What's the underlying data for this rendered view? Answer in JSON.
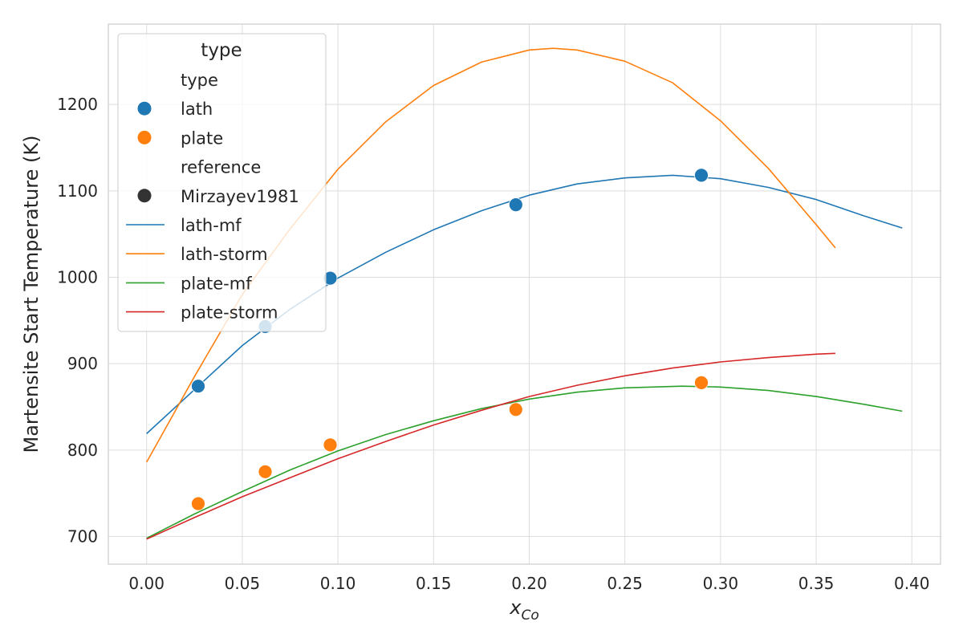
{
  "chart_data": {
    "type": "scatter",
    "xlabel": "x",
    "xlabel_sub": "Co",
    "ylabel": "Martensite Start Temperature (K)",
    "xlim": [
      -0.02,
      0.415
    ],
    "ylim": [
      668,
      1293
    ],
    "xticks": [
      "0.00",
      "0.05",
      "0.10",
      "0.15",
      "0.20",
      "0.25",
      "0.30",
      "0.35",
      "0.40"
    ],
    "xtick_values": [
      0.0,
      0.05,
      0.1,
      0.15,
      0.2,
      0.25,
      0.3,
      0.35,
      0.4
    ],
    "yticks": [
      "700",
      "800",
      "900",
      "1000",
      "1100",
      "1200"
    ],
    "ytick_values": [
      700,
      800,
      900,
      1000,
      1100,
      1200
    ],
    "grid": true,
    "legend_position": "top-left",
    "scatter_series": [
      {
        "name": "lath",
        "color": "#1f77b4",
        "x": [
          0.027,
          0.062,
          0.096,
          0.193,
          0.29
        ],
        "y": [
          874,
          943,
          999,
          1084,
          1118
        ]
      },
      {
        "name": "plate",
        "color": "#ff7f0e",
        "x": [
          0.027,
          0.062,
          0.096,
          0.193,
          0.29
        ],
        "y": [
          738,
          775,
          806,
          847,
          878
        ]
      }
    ],
    "line_series": [
      {
        "name": "lath-mf",
        "color": "#1f77b4",
        "x": [
          0.0,
          0.025,
          0.05,
          0.075,
          0.1,
          0.125,
          0.15,
          0.175,
          0.2,
          0.225,
          0.25,
          0.275,
          0.3,
          0.325,
          0.35,
          0.375,
          0.395
        ],
        "y": [
          819,
          870,
          921,
          963,
          999,
          1029,
          1055,
          1077,
          1095,
          1108,
          1115,
          1118,
          1114,
          1104,
          1090,
          1071,
          1057
        ]
      },
      {
        "name": "lath-storm",
        "color": "#ff7f0e",
        "x": [
          0.0,
          0.025,
          0.05,
          0.075,
          0.1,
          0.125,
          0.15,
          0.175,
          0.2,
          0.2125,
          0.225,
          0.25,
          0.275,
          0.3,
          0.325,
          0.35,
          0.36
        ],
        "y": [
          786,
          885,
          980,
          1056,
          1125,
          1180,
          1222,
          1249,
          1263,
          1265,
          1263,
          1250,
          1225,
          1181,
          1126,
          1061,
          1034
        ]
      },
      {
        "name": "plate-mf",
        "color": "#2ca02c",
        "x": [
          0.0,
          0.025,
          0.05,
          0.075,
          0.1,
          0.125,
          0.15,
          0.175,
          0.2,
          0.225,
          0.25,
          0.28,
          0.3,
          0.325,
          0.35,
          0.375,
          0.395
        ],
        "y": [
          698,
          726,
          752,
          777,
          799,
          818,
          834,
          848,
          859,
          867,
          872,
          874,
          873,
          869,
          862,
          853,
          845
        ]
      },
      {
        "name": "plate-storm",
        "color": "#d62728",
        "x": [
          0.0,
          0.025,
          0.05,
          0.075,
          0.1,
          0.125,
          0.15,
          0.175,
          0.2,
          0.225,
          0.25,
          0.275,
          0.3,
          0.325,
          0.35,
          0.36
        ],
        "y": [
          697,
          722,
          746,
          768,
          790,
          810,
          829,
          846,
          862,
          875,
          886,
          895,
          902,
          907,
          911,
          912
        ]
      }
    ],
    "legend": {
      "title": "type",
      "entries": [
        {
          "kind": "header",
          "label": "type"
        },
        {
          "kind": "marker",
          "label": "lath",
          "color": "#1f77b4"
        },
        {
          "kind": "marker",
          "label": "plate",
          "color": "#ff7f0e"
        },
        {
          "kind": "header",
          "label": "reference"
        },
        {
          "kind": "marker",
          "label": "Mirzayev1981",
          "color": "#333333"
        },
        {
          "kind": "line",
          "label": "lath-mf",
          "color": "#1f77b4"
        },
        {
          "kind": "line",
          "label": "lath-storm",
          "color": "#ff7f0e"
        },
        {
          "kind": "line",
          "label": "plate-mf",
          "color": "#2ca02c"
        },
        {
          "kind": "line",
          "label": "plate-storm",
          "color": "#d62728"
        }
      ]
    }
  }
}
